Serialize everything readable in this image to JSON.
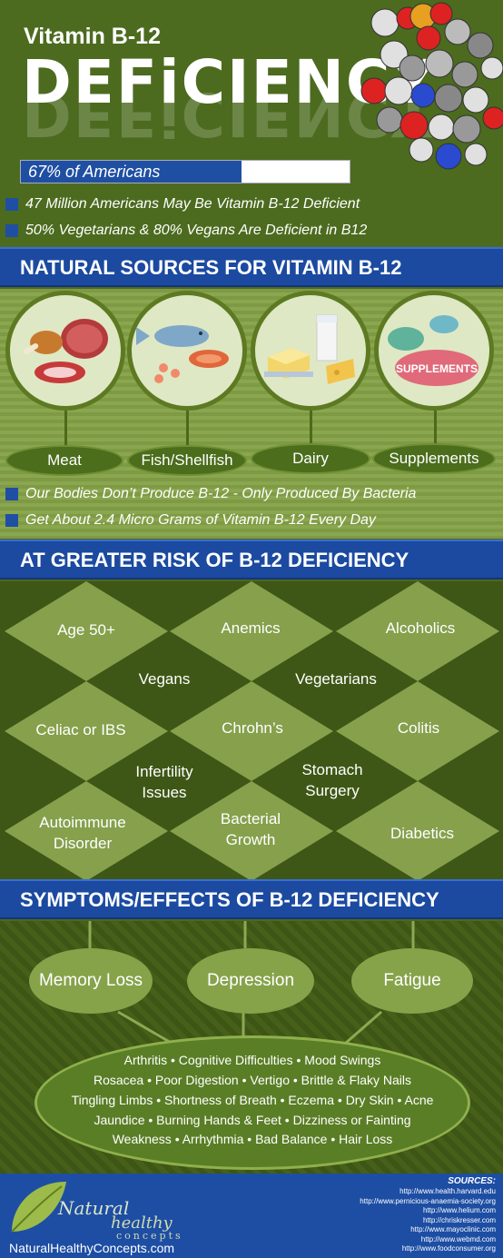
{
  "header": {
    "subtitle": "Vitamin B-12",
    "title": "DEFiCIENCY"
  },
  "stat_bar": {
    "label": "67% of Americans",
    "value_percent": 67
  },
  "top_bullets": [
    "47 Million Americans May Be Vitamin B-12 Deficient",
    "50% Vegetarians & 80% Vegans Are Deficient in B12"
  ],
  "sources_section": {
    "heading": "NATURAL SOURCES FOR VITAMIN B-12",
    "items": [
      {
        "label": "Meat",
        "icon": "meat-icon"
      },
      {
        "label": "Fish/Shellfish",
        "icon": "fish-icon"
      },
      {
        "label": "Dairy",
        "icon": "dairy-icon"
      },
      {
        "label": "Supplements",
        "icon": "supplements-icon"
      }
    ],
    "supplement_pill_text": "SUPPLEMENTS"
  },
  "mid_bullets": [
    "Our Bodies Don’t Produce B-12 - Only Produced By Bacteria",
    "Get About 2.4 Micro Grams of Vitamin B-12 Every Day"
  ],
  "risk_section": {
    "heading": "AT GREATER RISK OF B-12 DEFICIENCY",
    "groups": [
      "Age 50+",
      "Anemics",
      "Alcoholics",
      "Vegans",
      "Vegetarians",
      "Celiac or IBS",
      "Chrohn’s",
      "Colitis",
      "Infertility Issues",
      "Stomach Surgery",
      "Autoimmune Disorder",
      "Bacterial Growth",
      "Diabetics"
    ]
  },
  "symptoms_section": {
    "heading": "SYMPTOMS/EFFECTS OF B-12 DEFICIENCY",
    "main": [
      "Memory Loss",
      "Depression",
      "Fatigue"
    ],
    "lines": [
      "Arthritis • Cognitive Difficulties • Mood Swings",
      "Rosacea • Poor Digestion • Vertigo • Brittle & Flaky Nails",
      "Tingling Limbs • Shortness of Breath • Eczema • Dry Skin • Acne",
      "Jaundice • Burning Hands & Feet • Dizziness or Fainting",
      "Weakness • Arrhythmia • Bad Balance • Hair Loss"
    ]
  },
  "footer": {
    "logo_line1": "Natural",
    "logo_line2": "healthy",
    "logo_line3": "concepts",
    "website": "NaturalHealthyConcepts.com",
    "sources_title": "SOURCES:",
    "sources": [
      "http://www.health.harvard.edu",
      "http://www.pernicious-anaemia-society.org",
      "http://www.helium.com",
      "http://chriskresser.com",
      "http://www.mayoclinic.com",
      "http://www.webmd.com",
      "http://www.foodconsumer.org"
    ]
  },
  "colors": {
    "accent_blue": "#1b4aa0",
    "dark_green": "#3e5716",
    "light_green": "#8aa64e"
  }
}
